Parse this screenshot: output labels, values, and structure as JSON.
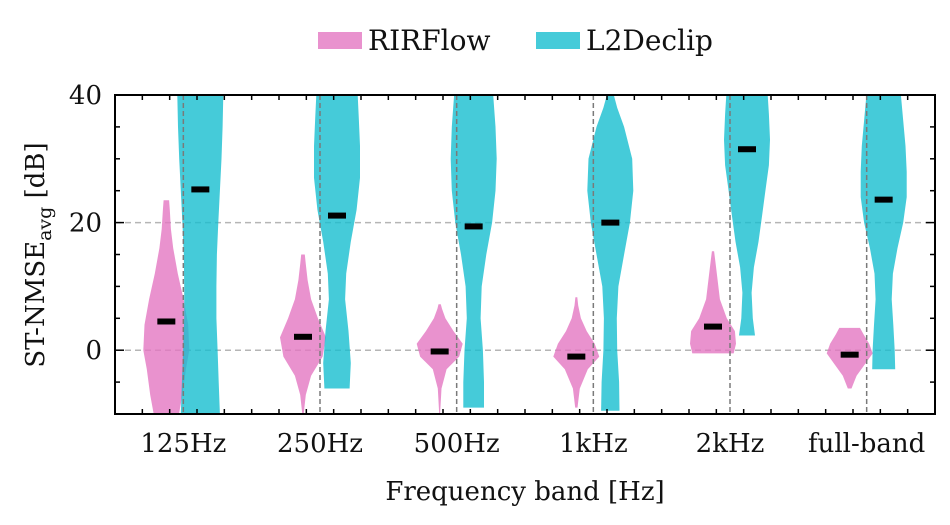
{
  "chart_data": {
    "type": "violin",
    "categories": [
      "125Hz",
      "250Hz",
      "500Hz",
      "1kHz",
      "2kHz",
      "full-band"
    ],
    "xlabel": "Frequency band [Hz]",
    "ylabel": {
      "main": "ST-NMSE",
      "sub": "avg",
      "unit": " [dB]"
    },
    "ylim": [
      -10,
      40
    ],
    "yticks": [
      0,
      20,
      40
    ],
    "yticks_minor_step": 5,
    "grid": {
      "horizontal": true,
      "style": "dashed",
      "category_separators": true
    },
    "legend": {
      "placement": "top-center"
    },
    "series": [
      {
        "name": "RIRFlow",
        "color": "#e377c2",
        "distributions": [
          {
            "median": 4.5,
            "min": -10,
            "max": 23.5,
            "profile": [
              [
                -10,
                0.55
              ],
              [
                -7,
                0.7
              ],
              [
                -3,
                0.85
              ],
              [
                0,
                1.0
              ],
              [
                4,
                0.95
              ],
              [
                8,
                0.75
              ],
              [
                12,
                0.5
              ],
              [
                16,
                0.3
              ],
              [
                19,
                0.2
              ],
              [
                22,
                0.15
              ],
              [
                23.5,
                0.12
              ]
            ]
          },
          {
            "median": 2.1,
            "min": -10,
            "max": 15,
            "profile": [
              [
                -10,
                0.03
              ],
              [
                -7,
                0.12
              ],
              [
                -4,
                0.35
              ],
              [
                -1,
                0.85
              ],
              [
                2,
                1.0
              ],
              [
                5,
                0.65
              ],
              [
                8,
                0.35
              ],
              [
                11,
                0.2
              ],
              [
                13.5,
                0.12
              ],
              [
                15,
                0.08
              ]
            ]
          },
          {
            "median": -0.2,
            "min": -10,
            "max": 7.2,
            "profile": [
              [
                -10,
                0.02
              ],
              [
                -6,
                0.08
              ],
              [
                -3,
                0.3
              ],
              [
                -1,
                0.85
              ],
              [
                1,
                1.0
              ],
              [
                3,
                0.6
              ],
              [
                5,
                0.25
              ],
              [
                6.5,
                0.1
              ],
              [
                7.2,
                0.05
              ]
            ]
          },
          {
            "median": -1.0,
            "min": -9,
            "max": 8.3,
            "profile": [
              [
                -9,
                0.05
              ],
              [
                -6,
                0.15
              ],
              [
                -3,
                0.5
              ],
              [
                -1,
                1.0
              ],
              [
                1,
                0.8
              ],
              [
                3,
                0.45
              ],
              [
                5,
                0.2
              ],
              [
                7,
                0.08
              ],
              [
                8.3,
                0.04
              ]
            ]
          },
          {
            "median": 3.7,
            "min": -0.5,
            "max": 15.5,
            "profile": [
              [
                -0.5,
                0.9
              ],
              [
                1,
                1.0
              ],
              [
                3,
                0.95
              ],
              [
                5,
                0.6
              ],
              [
                8,
                0.3
              ],
              [
                11,
                0.2
              ],
              [
                14,
                0.1
              ],
              [
                15.5,
                0.05
              ]
            ]
          },
          {
            "median": -0.7,
            "min": -6,
            "max": 3.5,
            "profile": [
              [
                -6,
                0.08
              ],
              [
                -4,
                0.3
              ],
              [
                -2,
                0.7
              ],
              [
                -0.5,
                1.0
              ],
              [
                1,
                0.85
              ],
              [
                2.5,
                0.6
              ],
              [
                3.5,
                0.45
              ]
            ]
          }
        ]
      },
      {
        "name": "L2Declip",
        "color": "#17becf",
        "distributions": [
          {
            "median": 25.2,
            "min": -10,
            "max": 40,
            "profile": [
              [
                -10,
                0.85
              ],
              [
                -5,
                0.8
              ],
              [
                0,
                0.75
              ],
              [
                5,
                0.7
              ],
              [
                10,
                0.7
              ],
              [
                15,
                0.72
              ],
              [
                20,
                0.78
              ],
              [
                25,
                0.85
              ],
              [
                30,
                0.92
              ],
              [
                35,
                0.97
              ],
              [
                40,
                1.0
              ]
            ]
          },
          {
            "median": 21.1,
            "min": -6,
            "max": 40,
            "profile": [
              [
                -6,
                0.55
              ],
              [
                -2,
                0.6
              ],
              [
                3,
                0.5
              ],
              [
                8,
                0.35
              ],
              [
                12,
                0.4
              ],
              [
                17,
                0.6
              ],
              [
                22,
                0.85
              ],
              [
                27,
                1.0
              ],
              [
                32,
                1.0
              ],
              [
                36,
                0.95
              ],
              [
                40,
                0.9
              ]
            ]
          },
          {
            "median": 19.4,
            "min": -9,
            "max": 40,
            "profile": [
              [
                -9,
                0.45
              ],
              [
                -5,
                0.45
              ],
              [
                0,
                0.4
              ],
              [
                5,
                0.3
              ],
              [
                10,
                0.35
              ],
              [
                15,
                0.55
              ],
              [
                20,
                0.8
              ],
              [
                25,
                0.95
              ],
              [
                30,
                1.0
              ],
              [
                35,
                0.95
              ],
              [
                40,
                0.85
              ]
            ]
          },
          {
            "median": 20.0,
            "min": -9.5,
            "max": 40,
            "profile": [
              [
                -9.5,
                0.4
              ],
              [
                -5,
                0.38
              ],
              [
                0,
                0.3
              ],
              [
                5,
                0.28
              ],
              [
                10,
                0.35
              ],
              [
                15,
                0.6
              ],
              [
                20,
                0.85
              ],
              [
                25,
                1.0
              ],
              [
                30,
                0.95
              ],
              [
                35,
                0.6
              ],
              [
                38,
                0.3
              ],
              [
                40,
                0.15
              ]
            ]
          },
          {
            "median": 31.5,
            "min": 2.3,
            "max": 40,
            "profile": [
              [
                2.3,
                0.35
              ],
              [
                5,
                0.25
              ],
              [
                9,
                0.2
              ],
              [
                13,
                0.3
              ],
              [
                17,
                0.5
              ],
              [
                21,
                0.65
              ],
              [
                25,
                0.8
              ],
              [
                29,
                0.95
              ],
              [
                33,
                1.0
              ],
              [
                37,
                0.95
              ],
              [
                40,
                0.9
              ]
            ]
          },
          {
            "median": 23.6,
            "min": -3,
            "max": 40,
            "profile": [
              [
                -3,
                0.5
              ],
              [
                0,
                0.48
              ],
              [
                4,
                0.42
              ],
              [
                8,
                0.35
              ],
              [
                12,
                0.4
              ],
              [
                16,
                0.6
              ],
              [
                20,
                0.85
              ],
              [
                24,
                1.0
              ],
              [
                28,
                1.0
              ],
              [
                32,
                0.95
              ],
              [
                36,
                0.85
              ],
              [
                40,
                0.75
              ]
            ]
          }
        ]
      }
    ]
  }
}
